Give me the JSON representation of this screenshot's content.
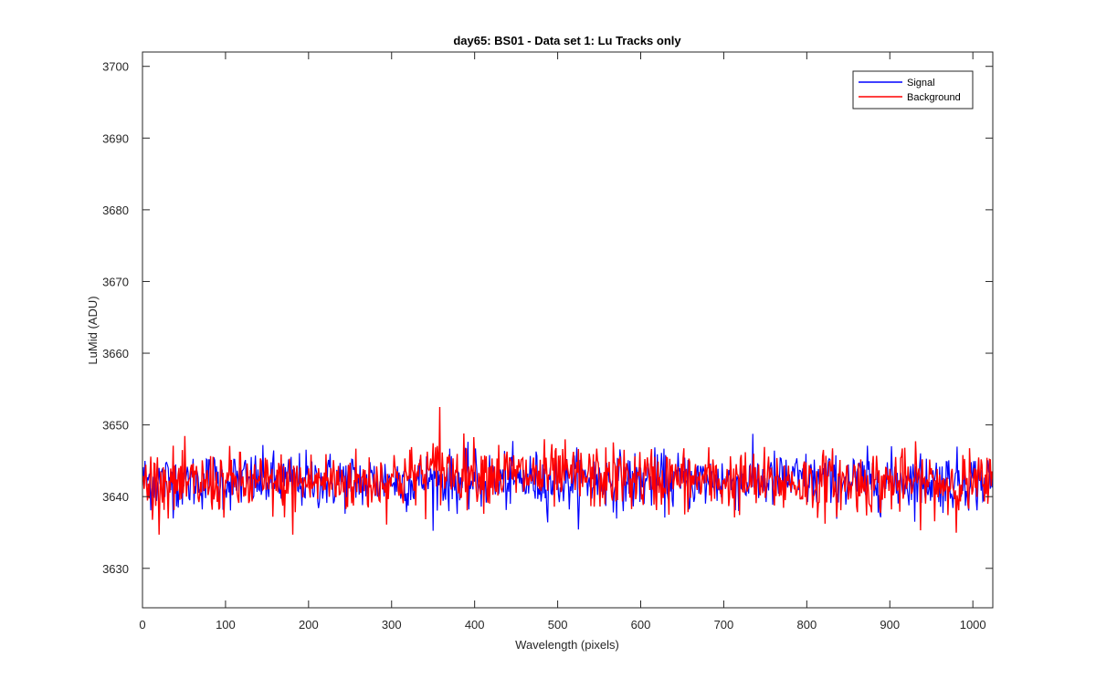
{
  "chart_data": {
    "type": "line",
    "title": "day65: BS01 - Data set 1: Lu Tracks only",
    "xlabel": "Wavelength (pixels)",
    "ylabel": "LuMid (ADU)",
    "xlim": [
      0,
      1024
    ],
    "ylim": [
      3624.5,
      3702
    ],
    "x_ticks": [
      0,
      100,
      200,
      300,
      400,
      500,
      600,
      700,
      800,
      900,
      1000
    ],
    "y_ticks": [
      3630,
      3640,
      3650,
      3660,
      3670,
      3680,
      3690,
      3700
    ],
    "x_tick_labels": [
      "0",
      "100",
      "200",
      "300",
      "400",
      "500",
      "600",
      "700",
      "800",
      "900",
      "1000"
    ],
    "y_tick_labels": [
      "3630",
      "3640",
      "3650",
      "3660",
      "3670",
      "3680",
      "3690",
      "3700"
    ],
    "grid": false,
    "legend_position": "top-right",
    "series": [
      {
        "name": "Signal",
        "color": "#0000ff",
        "x": [
          0,
          1024
        ],
        "y": [
          3642.2,
          3642.2
        ]
      },
      {
        "name": "Background",
        "color": "#ff0000",
        "x": [
          0,
          25,
          50,
          75,
          100,
          125,
          150,
          175,
          200,
          225,
          250,
          275,
          300,
          325,
          350,
          375,
          400,
          425,
          450,
          475,
          500,
          525,
          550,
          575,
          600,
          625,
          650,
          675,
          700,
          725,
          750,
          775,
          800,
          825,
          850,
          875,
          900,
          925,
          950,
          975,
          1000,
          1024
        ],
        "y": [
          3642.0,
          3642.2,
          3641.5,
          3641.8,
          3642.0,
          3641.6,
          3641.8,
          3641.7,
          3642.0,
          3642.2,
          3642.0,
          3642.0,
          3642.5,
          3642.8,
          3643.5,
          3643.6,
          3643.5,
          3643.2,
          3643.0,
          3642.9,
          3642.8,
          3642.8,
          3642.6,
          3642.7,
          3642.4,
          3642.4,
          3642.3,
          3642.2,
          3642.1,
          3642.0,
          3641.9,
          3642.0,
          3641.9,
          3642.0,
          3642.0,
          3642.0,
          3642.0,
          3642.0,
          3641.8,
          3641.9,
          3641.8,
          3641.5
        ],
        "noise_sd": 2.2,
        "min": 3634.7,
        "max": 3652.5
      }
    ]
  }
}
